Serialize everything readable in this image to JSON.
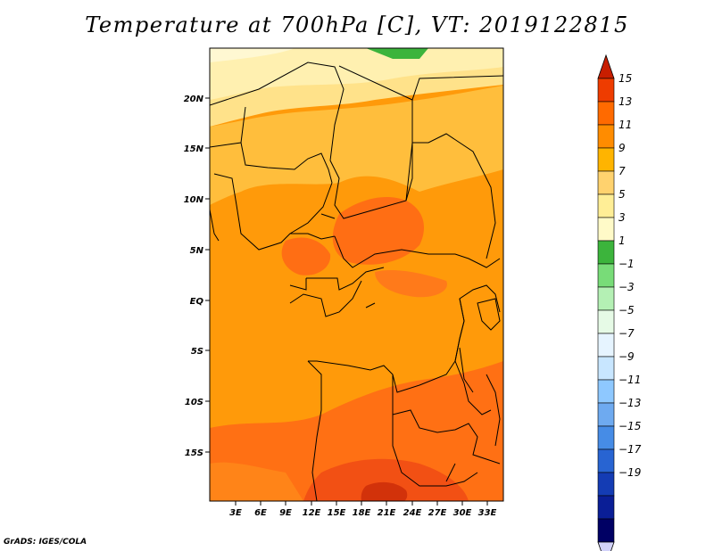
{
  "title": "Temperature at 700hPa [C], VT: 2019122815",
  "footer": "GrADS: IGES/COLA",
  "map": {
    "lat_labels": [
      "20N",
      "15N",
      "10N",
      "5N",
      "EQ",
      "5S",
      "10S",
      "15S"
    ],
    "lon_labels": [
      "3E",
      "6E",
      "9E",
      "12E",
      "15E",
      "18E",
      "21E",
      "24E",
      "27E",
      "30E",
      "33E"
    ]
  },
  "colorbar": {
    "labels": [
      "15",
      "13",
      "11",
      "9",
      "7",
      "5",
      "3",
      "1",
      "−1",
      "−3",
      "−5",
      "−7",
      "−9",
      "−11",
      "−13",
      "−15",
      "−17",
      "−19"
    ],
    "colors": [
      "#c81e00",
      "#ee3c00",
      "#ff6a00",
      "#ff8c00",
      "#ffb400",
      "#ffd26e",
      "#ffee96",
      "#fffac8",
      "#3cb43c",
      "#78dc78",
      "#b4f0b4",
      "#e6fae6",
      "#e6f4ff",
      "#c8e6ff",
      "#8ec8ff",
      "#6eaaf0",
      "#468ce6",
      "#2864d2",
      "#143cb4",
      "#0a1e96",
      "#000064",
      "#d2d2fa"
    ]
  }
}
